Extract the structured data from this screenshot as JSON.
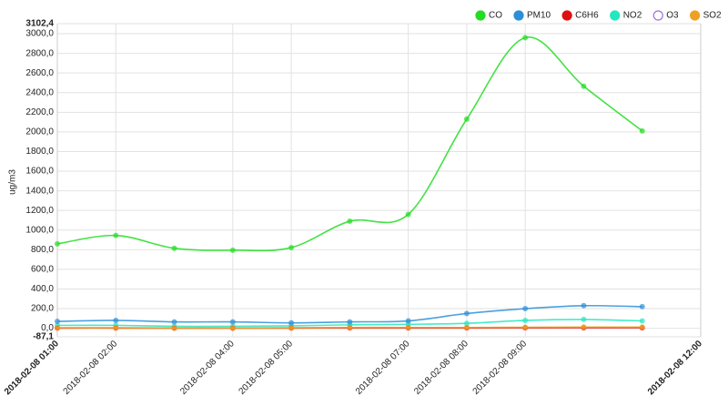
{
  "chart_data": {
    "type": "line",
    "y_label": "ug/m3",
    "x": [
      "2018-02-08 01:00",
      "2018-02-08 02:00",
      "2018-02-08 03:00",
      "2018-02-08 04:00",
      "2018-02-08 05:00",
      "2018-02-08 06:00",
      "2018-02-08 07:00",
      "2018-02-08 08:00",
      "2018-02-08 09:00",
      "2018-02-08 10:00",
      "2018-02-08 11:00"
    ],
    "xlim": [
      "2018-02-08 01:00",
      "2018-02-08 12:00"
    ],
    "xticks": [
      "2018-02-08 02:00",
      "2018-02-08 04:00",
      "2018-02-08 05:00",
      "2018-02-08 07:00",
      "2018-02-08 08:00",
      "2018-02-08 09:00"
    ],
    "ylim": [
      -87.1,
      3102.4
    ],
    "ylim_labels": [
      "-87,1",
      "3102,4"
    ],
    "yticks": [
      {
        "value": 0,
        "label": "0,0"
      },
      {
        "value": 200,
        "label": "200,0"
      },
      {
        "value": 400,
        "label": "400,0"
      },
      {
        "value": 600,
        "label": "600,0"
      },
      {
        "value": 800,
        "label": "800,0"
      },
      {
        "value": 1000,
        "label": "1000,0"
      },
      {
        "value": 1200,
        "label": "1200,0"
      },
      {
        "value": 1400,
        "label": "1400,0"
      },
      {
        "value": 1600,
        "label": "1600,0"
      },
      {
        "value": 1800,
        "label": "1800,0"
      },
      {
        "value": 2000,
        "label": "2000,0"
      },
      {
        "value": 2200,
        "label": "2200,0"
      },
      {
        "value": 2400,
        "label": "2400,0"
      },
      {
        "value": 2600,
        "label": "2600,0"
      },
      {
        "value": 2800,
        "label": "2800,0"
      },
      {
        "value": 3000,
        "label": "3000,0"
      }
    ],
    "grid": true,
    "legend": "top-right",
    "series": [
      {
        "name": "CO",
        "color": "#22dd22",
        "visible": true,
        "values": [
          860,
          945,
          815,
          795,
          822,
          1090,
          1160,
          2130,
          2960,
          2465,
          2010
        ]
      },
      {
        "name": "PM10",
        "color": "#2b8fd8",
        "visible": true,
        "values": [
          70,
          80,
          65,
          65,
          55,
          65,
          75,
          150,
          200,
          230,
          220
        ]
      },
      {
        "name": "C6H6",
        "color": "#e01010",
        "visible": true,
        "values": [
          2,
          2,
          1,
          1,
          2,
          3,
          3,
          3,
          4,
          5,
          5
        ]
      },
      {
        "name": "NO2",
        "color": "#22e8c0",
        "visible": true,
        "values": [
          30,
          30,
          20,
          20,
          25,
          35,
          40,
          50,
          80,
          90,
          75
        ]
      },
      {
        "name": "O3",
        "color": "#a070e0",
        "visible": false,
        "values": [
          null,
          null,
          null,
          null,
          null,
          null,
          null,
          null,
          null,
          null,
          null
        ]
      },
      {
        "name": "SO2",
        "color": "#f0a020",
        "visible": true,
        "values": [
          5,
          5,
          3,
          3,
          5,
          8,
          8,
          8,
          10,
          12,
          12
        ]
      }
    ]
  }
}
